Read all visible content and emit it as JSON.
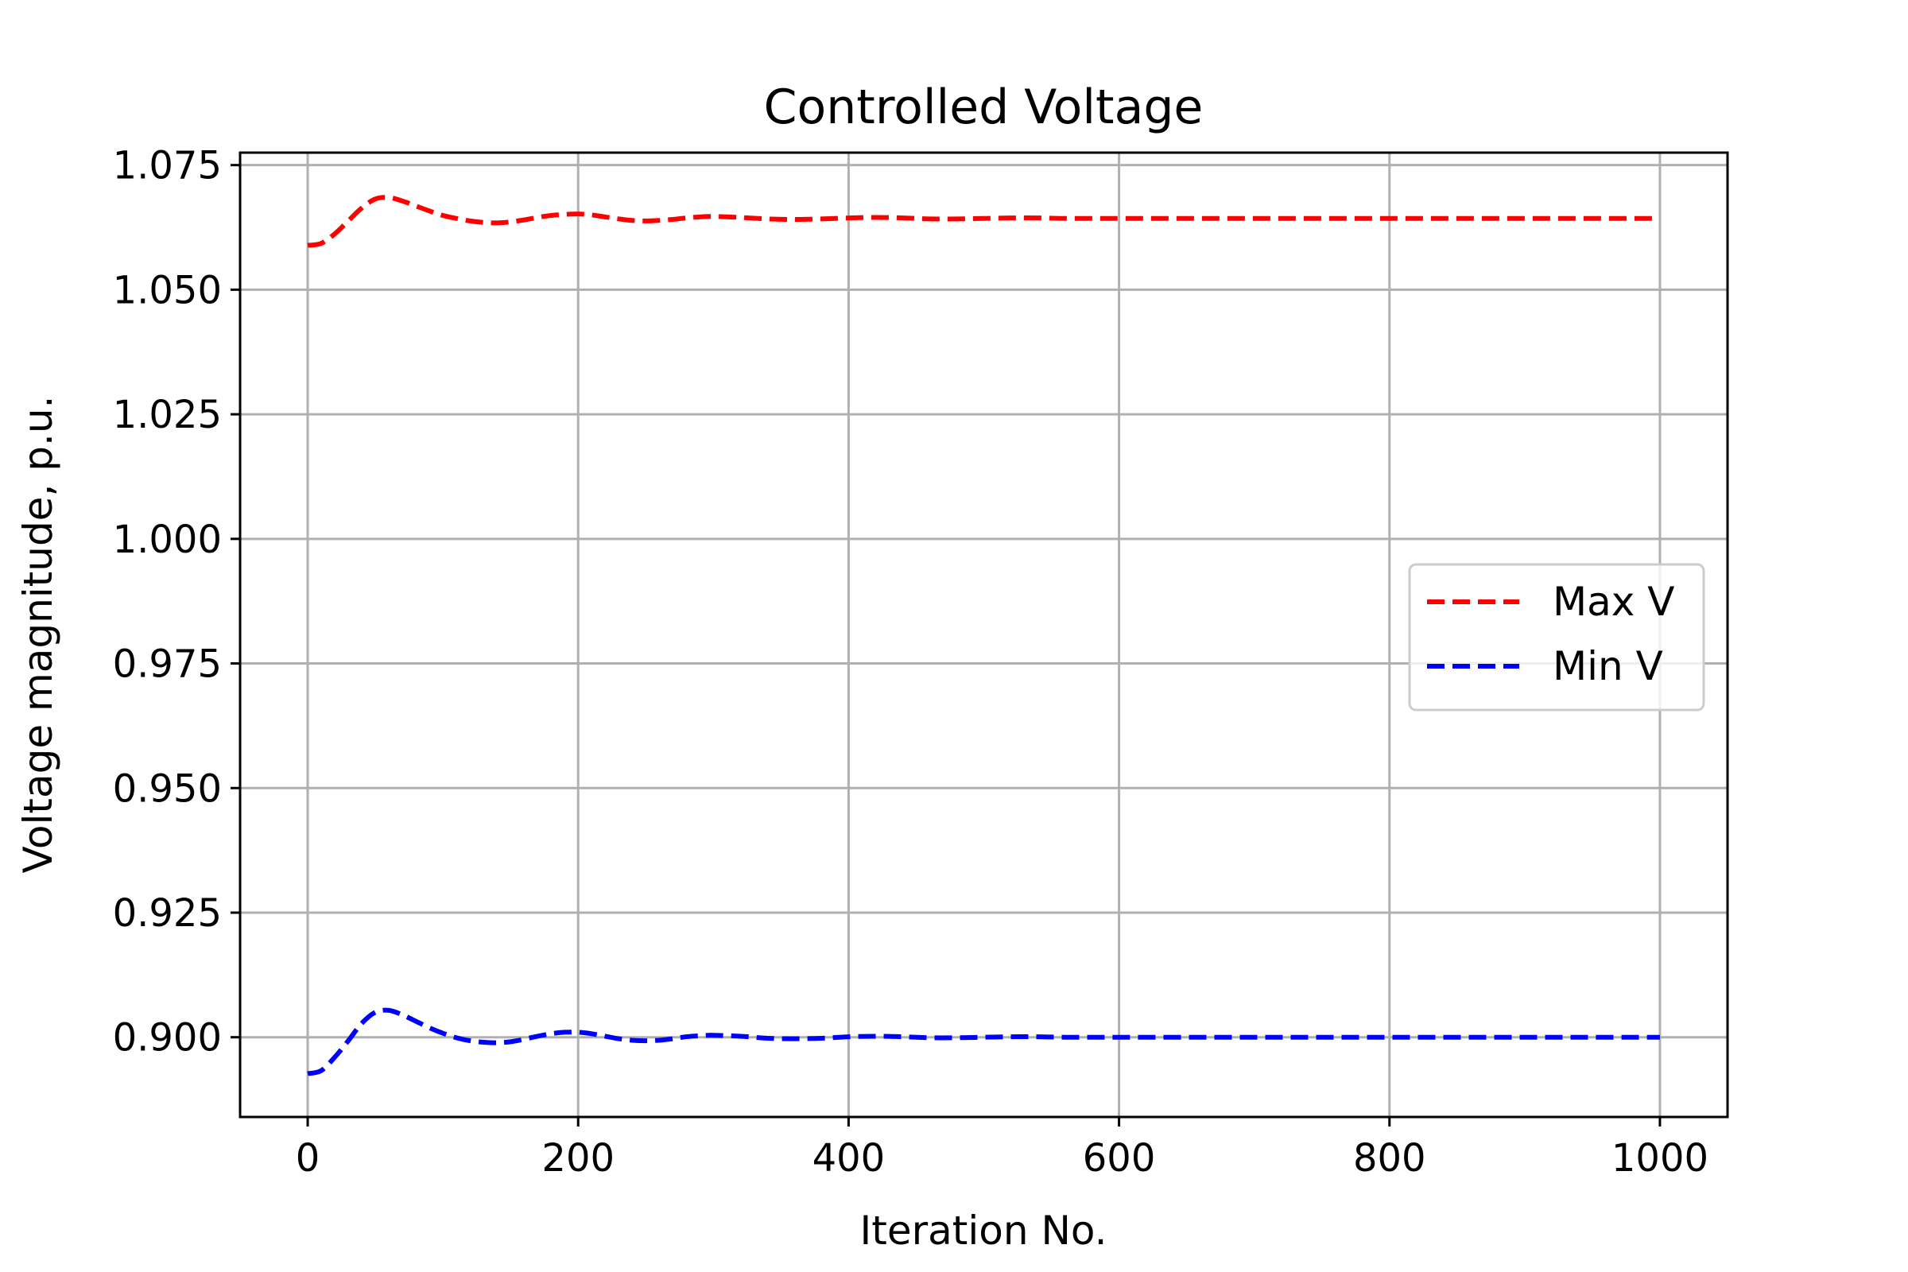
{
  "chart_data": {
    "type": "line",
    "title": "Controlled Voltage",
    "xlabel": "Iteration No.",
    "ylabel": "Voltage magnitude, p.u.",
    "xlim": [
      -50,
      1050
    ],
    "ylim": [
      0.884,
      1.0775
    ],
    "x_ticks": [
      0,
      200,
      400,
      600,
      800,
      1000
    ],
    "x_tick_labels": [
      "0",
      "200",
      "400",
      "600",
      "800",
      "1000"
    ],
    "y_ticks": [
      0.9,
      0.925,
      0.95,
      0.975,
      1.0,
      1.025,
      1.05,
      1.075
    ],
    "y_tick_labels": [
      "0.900",
      "0.925",
      "0.950",
      "0.975",
      "1.000",
      "1.025",
      "1.050",
      "1.075"
    ],
    "grid": true,
    "legend_position": "center-right",
    "x": [
      0,
      10,
      20,
      30,
      40,
      50,
      60,
      70,
      80,
      90,
      100,
      110,
      120,
      130,
      140,
      150,
      160,
      170,
      180,
      190,
      200,
      210,
      220,
      230,
      240,
      250,
      260,
      270,
      280,
      290,
      300,
      320,
      340,
      360,
      380,
      400,
      420,
      440,
      460,
      480,
      500,
      520,
      540,
      560,
      580,
      600,
      650,
      700,
      750,
      800,
      850,
      900,
      950,
      1000
    ],
    "series": [
      {
        "name": "Max V",
        "color": "#ff0000",
        "linestyle": "dashed",
        "values": [
          1.0589,
          1.0593,
          1.0612,
          1.0638,
          1.0664,
          1.0682,
          1.0685,
          1.0678,
          1.0668,
          1.0658,
          1.0649,
          1.0643,
          1.0638,
          1.0635,
          1.0634,
          1.0636,
          1.064,
          1.0645,
          1.0649,
          1.0651,
          1.0652,
          1.065,
          1.0646,
          1.0642,
          1.0639,
          1.0638,
          1.0639,
          1.0641,
          1.0644,
          1.0646,
          1.0647,
          1.0645,
          1.0642,
          1.0641,
          1.0642,
          1.0644,
          1.0645,
          1.0644,
          1.0642,
          1.0642,
          1.0643,
          1.0644,
          1.0644,
          1.0643,
          1.0643,
          1.0643,
          1.0643,
          1.0643,
          1.0643,
          1.0643,
          1.0643,
          1.0643,
          1.0643,
          1.0643
        ]
      },
      {
        "name": "Min V",
        "color": "#0000ff",
        "linestyle": "dashed",
        "values": [
          0.8927,
          0.8933,
          0.896,
          0.8993,
          0.9028,
          0.905,
          0.9054,
          0.9045,
          0.9032,
          0.9019,
          0.9008,
          0.8999,
          0.8993,
          0.899,
          0.8989,
          0.8991,
          0.8996,
          0.9002,
          0.9007,
          0.901,
          0.901,
          0.9007,
          0.9002,
          0.8997,
          0.8994,
          0.8993,
          0.8994,
          0.8997,
          0.9001,
          0.9003,
          0.9004,
          0.9002,
          0.8998,
          0.8997,
          0.8998,
          0.9001,
          0.9002,
          0.9001,
          0.8999,
          0.8999,
          0.9,
          0.9001,
          0.9001,
          0.9,
          0.9,
          0.9,
          0.9,
          0.9,
          0.9,
          0.9,
          0.9,
          0.9,
          0.9,
          0.9
        ]
      }
    ]
  }
}
